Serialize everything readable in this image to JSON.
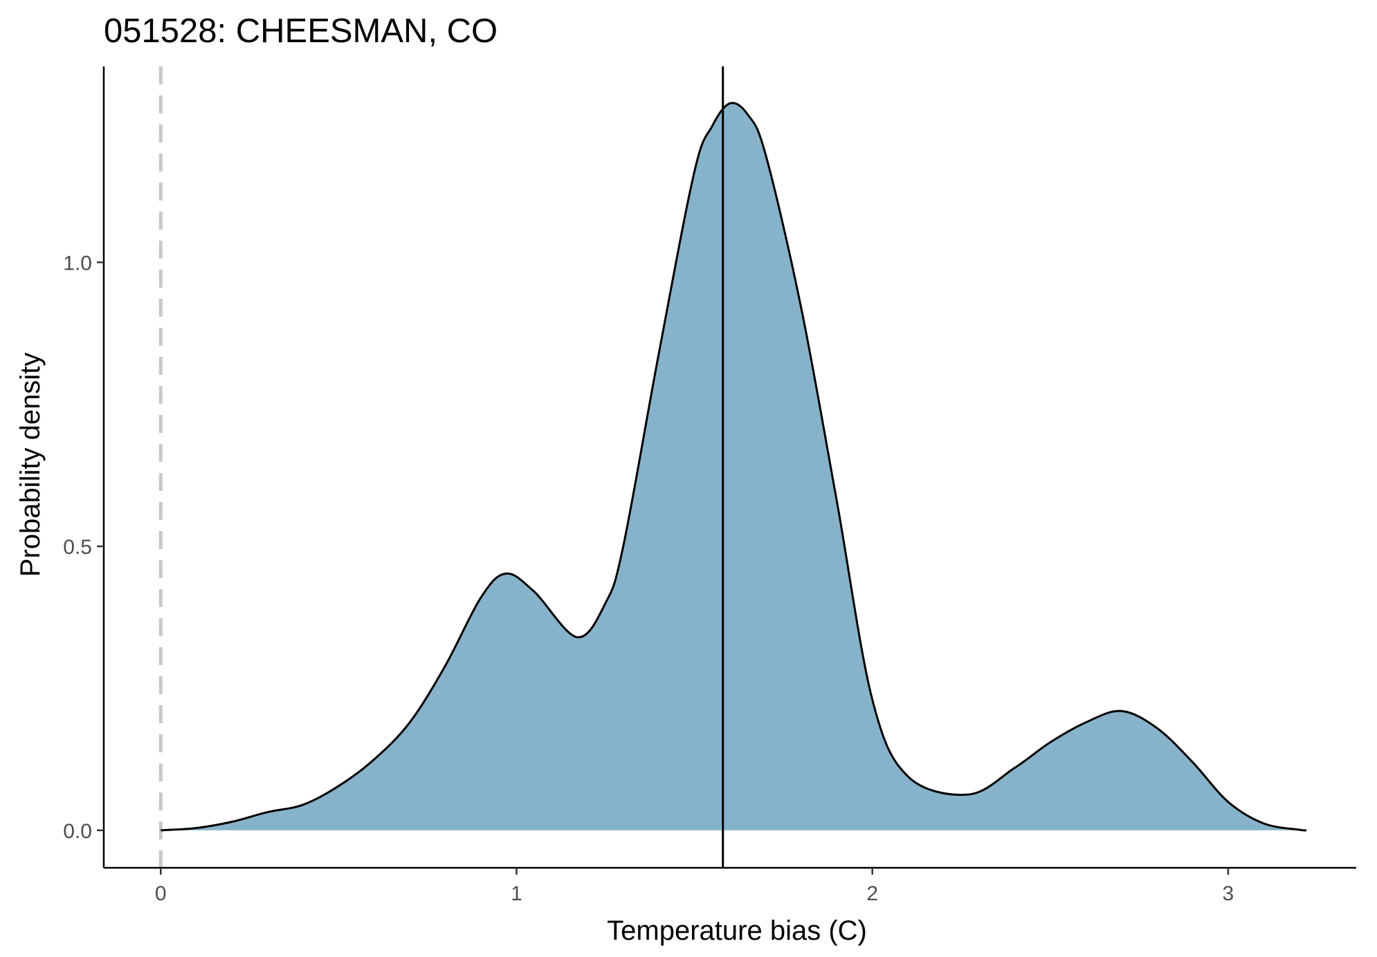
{
  "chart_data": {
    "type": "area",
    "title": "051528: CHEESMAN, CO",
    "xlabel": "Temperature bias (C)",
    "ylabel": "Probability density",
    "xlim": [
      -0.16,
      3.36
    ],
    "ylim": [
      -0.066,
      1.345
    ],
    "xticks": [
      0,
      1,
      2,
      3
    ],
    "xtick_labels": [
      "0",
      "1",
      "2",
      "3"
    ],
    "yticks": [
      0.0,
      0.5,
      1.0
    ],
    "ytick_labels": [
      "0.0",
      "0.5",
      "1.0"
    ],
    "grid": false,
    "legend": "none",
    "series": [
      {
        "x": [
          0.0,
          0.1,
          0.2,
          0.3,
          0.4,
          0.5,
          0.6,
          0.7,
          0.8,
          0.9,
          0.97,
          1.05,
          1.17,
          1.25,
          1.3,
          1.4,
          1.5,
          1.55,
          1.6,
          1.65,
          1.7,
          1.8,
          1.9,
          2.0,
          2.1,
          2.27,
          2.4,
          2.5,
          2.6,
          2.7,
          2.8,
          2.9,
          3.0,
          3.1,
          3.2,
          3.22
        ],
        "y": [
          0.0,
          0.004,
          0.015,
          0.032,
          0.045,
          0.078,
          0.125,
          0.19,
          0.29,
          0.41,
          0.452,
          0.42,
          0.34,
          0.4,
          0.5,
          0.84,
          1.16,
          1.24,
          1.28,
          1.26,
          1.19,
          0.92,
          0.58,
          0.23,
          0.095,
          0.063,
          0.11,
          0.155,
          0.19,
          0.21,
          0.18,
          0.12,
          0.05,
          0.012,
          0.001,
          0.0
        ]
      }
    ],
    "reference_lines": [
      {
        "axis": "x",
        "value": 0,
        "style": "dashed",
        "color": "#c8c8c8"
      },
      {
        "axis": "x",
        "value": 1.58,
        "style": "solid",
        "color": "#000000"
      }
    ],
    "colors": {
      "fill": "#86b3ca",
      "outline": "#000000"
    }
  }
}
